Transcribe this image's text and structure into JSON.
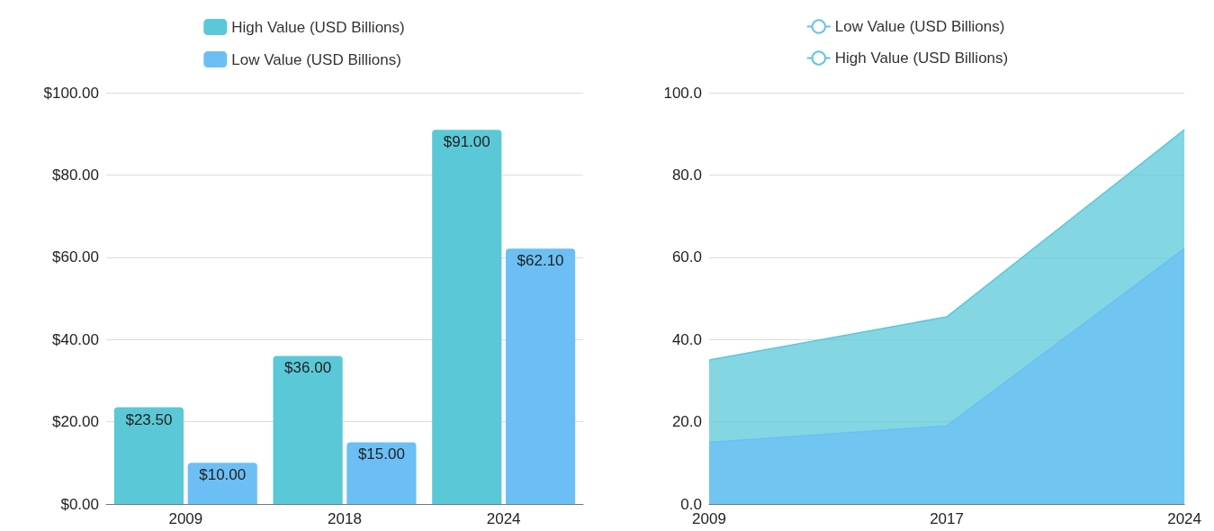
{
  "chart_data": [
    {
      "type": "bar",
      "categories": [
        "2009",
        "2018",
        "2024"
      ],
      "legend": "top",
      "series": [
        {
          "name": "High Value (USD Billions)",
          "color": "#5bc8d8",
          "values": [
            23.5,
            36,
            91
          ],
          "value_labels": [
            "$23.50",
            "$36.00",
            "$91.00"
          ]
        },
        {
          "name": "Low Value (USD Billions)",
          "color": "#6bbff5",
          "values": [
            10,
            15,
            62.1
          ],
          "value_labels": [
            "$10.00",
            "$15.00",
            "$62.10"
          ]
        }
      ],
      "ylim": [
        0,
        100
      ],
      "yticks": [
        {
          "value": 0,
          "label": "$0.00"
        },
        {
          "value": 20,
          "label": "$20.00"
        },
        {
          "value": 40,
          "label": "$40.00"
        },
        {
          "value": 60,
          "label": "$60.00"
        },
        {
          "value": 80,
          "label": "$80.00"
        },
        {
          "value": 100,
          "label": "$100.00"
        }
      ],
      "grid": "y"
    },
    {
      "type": "area",
      "categories": [
        "2009",
        "2017",
        "2024"
      ],
      "legend": "top",
      "series": [
        {
          "name": "Low Value (USD Billions)",
          "color": "#6bbff5",
          "values": [
            15,
            19,
            62.1
          ]
        },
        {
          "name": "High Value (USD Billions)",
          "color": "#5bc8d8",
          "values": [
            35,
            45.5,
            91
          ]
        }
      ],
      "ylim": [
        0,
        100
      ],
      "yticks": [
        {
          "value": 0,
          "label": "0.0"
        },
        {
          "value": 20,
          "label": "20.0"
        },
        {
          "value": 40,
          "label": "40.0"
        },
        {
          "value": 60,
          "label": "60.0"
        },
        {
          "value": 80,
          "label": "80.0"
        },
        {
          "value": 100,
          "label": "100.0"
        }
      ],
      "grid": "y"
    }
  ]
}
